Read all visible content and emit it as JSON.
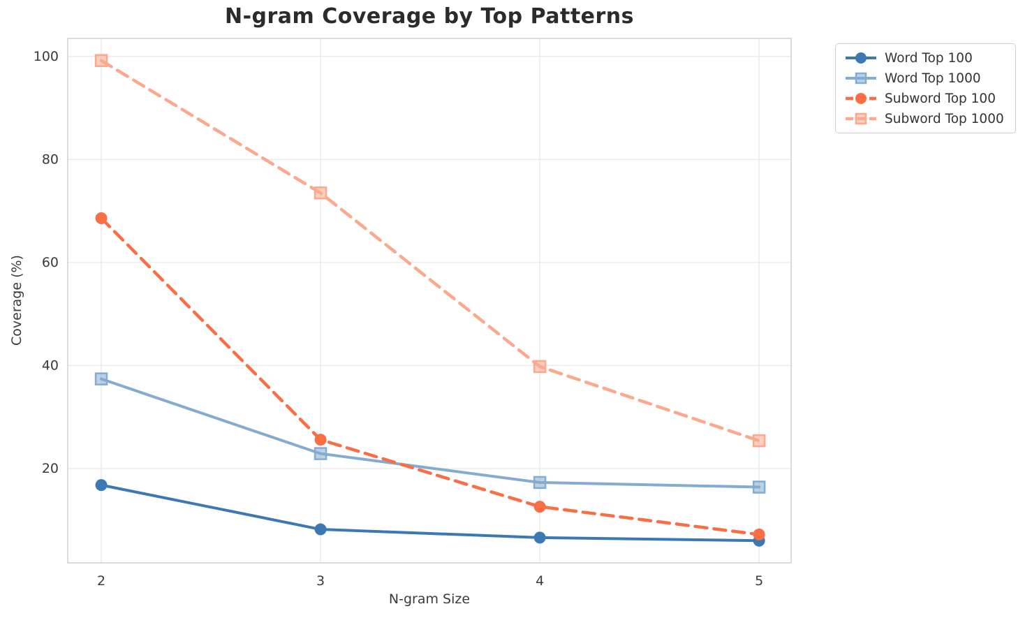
{
  "chart_data": {
    "type": "line",
    "title": "N-gram Coverage by Top Patterns",
    "xlabel": "N-gram Size",
    "ylabel": "Coverage (%)",
    "x": [
      2,
      3,
      4,
      5
    ],
    "yticks": [
      20,
      40,
      60,
      80,
      100
    ],
    "xlim": [
      1.847,
      5.146
    ],
    "ylim": [
      1.7,
      103.5
    ],
    "grid": true,
    "legend_position": "outside-upper-right",
    "series": [
      {
        "name": "Word Top 100",
        "values": [
          16.8,
          8.2,
          6.6,
          6.0
        ],
        "color": "#3c78b2",
        "marker": "circle",
        "dashed": false
      },
      {
        "name": "Word Top 1000",
        "values": [
          37.4,
          22.9,
          17.3,
          16.4
        ],
        "color": "#84abd0",
        "marker": "square",
        "dashed": false
      },
      {
        "name": "Subword Top 100",
        "values": [
          68.6,
          25.6,
          12.6,
          7.2
        ],
        "color": "#f96e44",
        "marker": "circle",
        "dashed": true
      },
      {
        "name": "Subword Top 1000",
        "values": [
          99.2,
          73.5,
          39.8,
          25.4
        ],
        "color": "#fba88c",
        "marker": "square",
        "dashed": true
      }
    ],
    "colors": {
      "grid": "#e8e8e8",
      "spine": "#cccccc",
      "tick_label": "#3a3a3a",
      "title_text": "#2b2b2b"
    }
  }
}
